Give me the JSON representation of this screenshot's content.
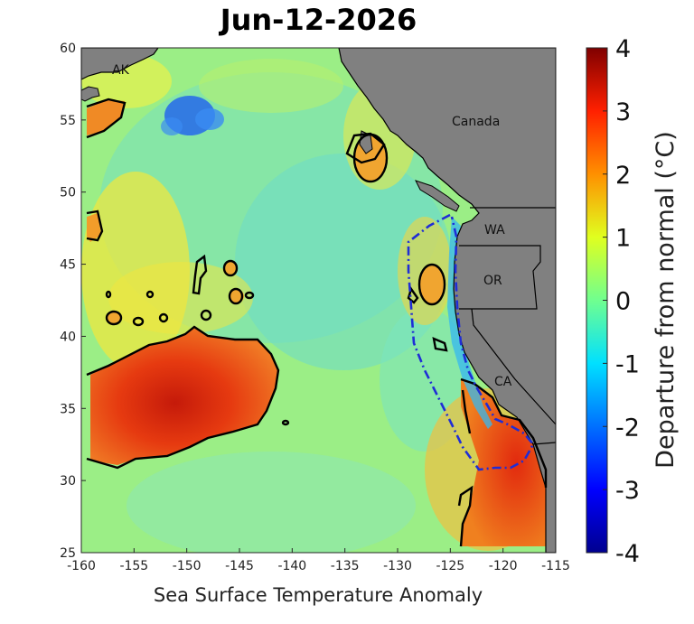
{
  "title": "Jun-12-2026",
  "x_axis": {
    "label": "Sea Surface Temperature Anomaly",
    "ticks": [
      "-160",
      "-155",
      "-150",
      "-145",
      "-140",
      "-135",
      "-130",
      "-125",
      "-120",
      "-115"
    ]
  },
  "y_axis": {
    "ticks": [
      "60",
      "55",
      "50",
      "45",
      "40",
      "35",
      "30",
      "25"
    ]
  },
  "colorbar": {
    "label": "Departure from normal (°C)",
    "ticks": [
      "4",
      "3",
      "2",
      "1",
      "0",
      "-1",
      "-2",
      "-3",
      "-4"
    ],
    "range": [
      -4,
      4
    ]
  },
  "place_labels": {
    "ak": "AK",
    "canada": "Canada",
    "wa": "WA",
    "or": "OR",
    "ca": "CA"
  },
  "colors": {
    "land": "#808080",
    "background_anomaly": "#a6f07a",
    "warm_contour": "#000000",
    "cyan_contour": "#1f2dd6"
  },
  "map_extent": {
    "lon": [
      -160,
      -115
    ],
    "lat": [
      25,
      60
    ]
  }
}
